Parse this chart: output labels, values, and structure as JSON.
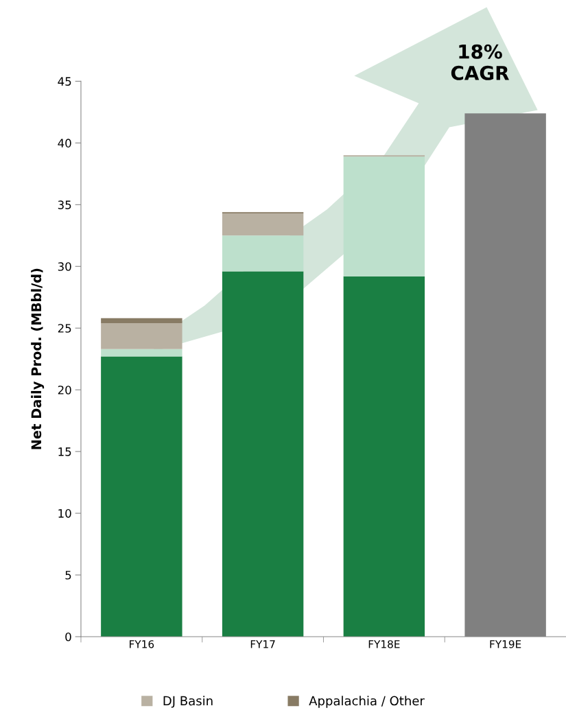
{
  "chart_data": {
    "type": "bar",
    "stacked": true,
    "ylabel": "Net Daily Prod. (MBbl/d)",
    "categories": [
      "FY16",
      "FY17",
      "FY18E",
      "FY19E"
    ],
    "series": [
      {
        "color": "#1a7f43",
        "values": [
          22.7,
          29.6,
          29.2,
          null
        ]
      },
      {
        "color": "#bde0cc",
        "values": [
          0.6,
          2.9,
          9.7,
          null
        ]
      },
      {
        "name": "DJ Basin",
        "color": "#b9b1a2",
        "values": [
          2.1,
          1.8,
          0.1,
          null
        ]
      },
      {
        "name": "Appalachia / Other",
        "color": "#887b64",
        "values": [
          0.4,
          0.1,
          0.0,
          null
        ]
      },
      {
        "color": "#808080",
        "values": [
          null,
          null,
          null,
          42.4
        ]
      }
    ],
    "ylim": [
      0,
      45
    ],
    "yticks": [
      0,
      5,
      10,
      15,
      20,
      25,
      30,
      35,
      40,
      45
    ],
    "grid": false,
    "legend": "bottom",
    "annotations": [
      "18%\nCAGR"
    ]
  }
}
